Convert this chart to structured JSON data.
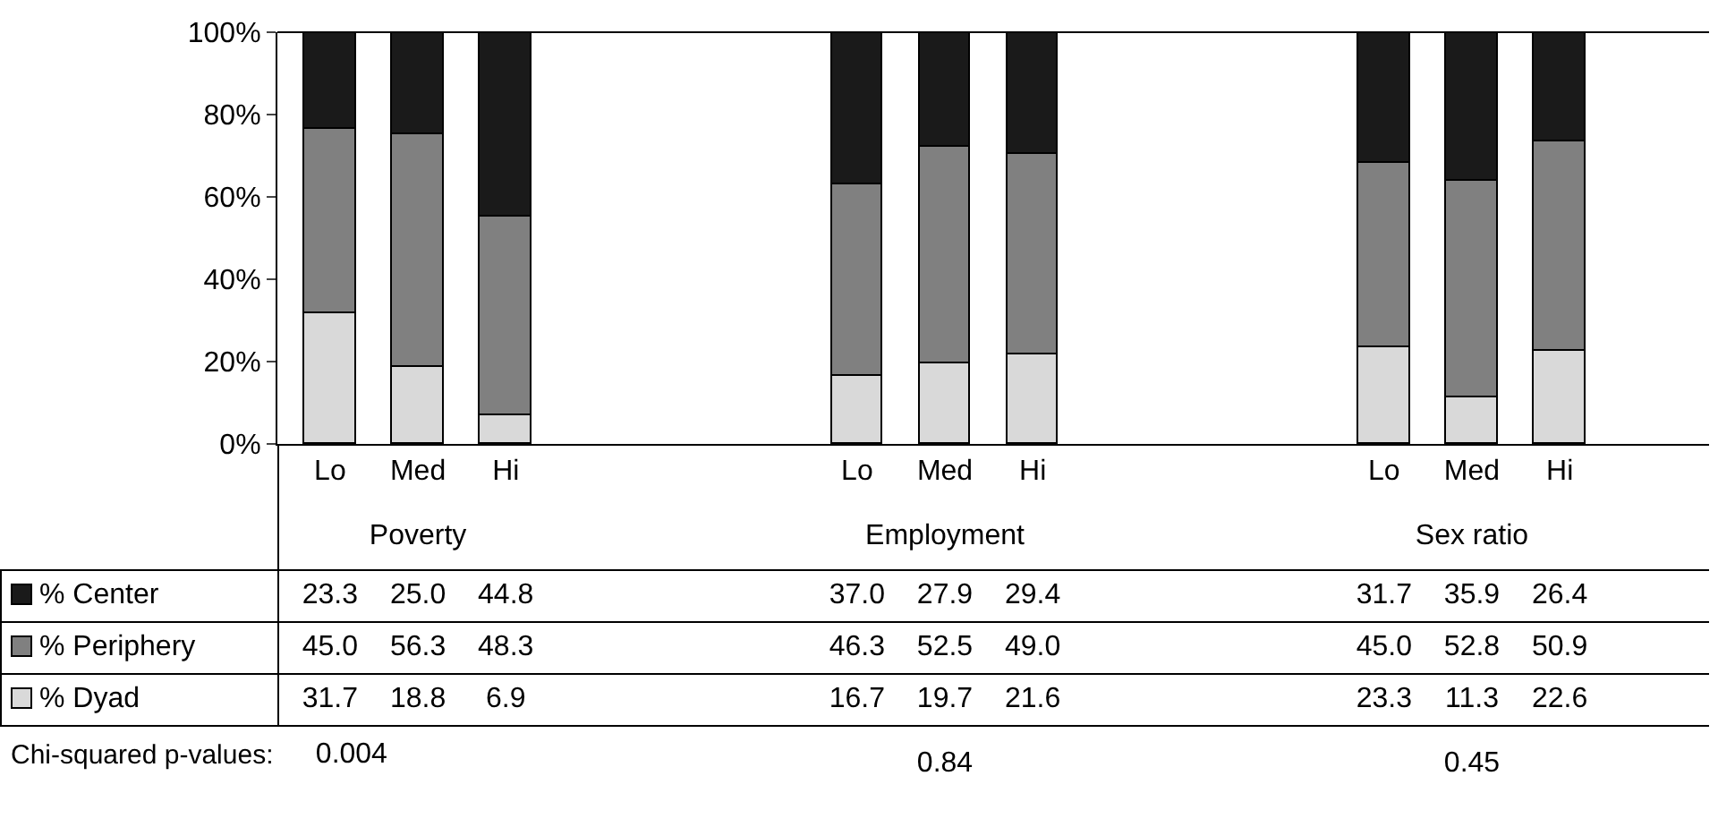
{
  "chart_data": {
    "type": "bar",
    "stacked": true,
    "legend": "left",
    "categories": [
      "Lo",
      "Med",
      "Hi",
      null,
      null,
      null,
      "Lo",
      "Med",
      "Hi",
      null,
      null,
      null,
      "Lo",
      "Med",
      "Hi"
    ],
    "series": [
      {
        "name": "% Dyad",
        "color": "#d9d9d9",
        "values": [
          31.7,
          18.8,
          6.9,
          null,
          null,
          null,
          16.7,
          19.7,
          21.6,
          null,
          null,
          null,
          23.3,
          11.3,
          22.6
        ],
        "value_labels": [
          "31.7",
          "18.8",
          "6.9",
          null,
          null,
          null,
          "16.7",
          "19.7",
          "21.6",
          null,
          null,
          null,
          "23.3",
          "11.3",
          "22.6"
        ]
      },
      {
        "name": "% Periphery",
        "color": "#808080",
        "values": [
          45.0,
          56.3,
          48.3,
          null,
          null,
          null,
          46.3,
          52.5,
          49.0,
          null,
          null,
          null,
          45.0,
          52.8,
          50.9
        ],
        "value_labels": [
          "45.0",
          "56.3",
          "48.3",
          null,
          null,
          null,
          "46.3",
          "52.5",
          "49.0",
          null,
          null,
          null,
          "45.0",
          "52.8",
          "50.9"
        ]
      },
      {
        "name": "% Center",
        "color": "#1a1a1a",
        "values": [
          23.3,
          25.0,
          44.8,
          null,
          null,
          null,
          37.0,
          27.9,
          29.4,
          null,
          null,
          null,
          31.7,
          35.9,
          26.4
        ],
        "value_labels": [
          "23.3",
          "25.0",
          "44.8",
          null,
          null,
          null,
          "37.0",
          "27.9",
          "29.4",
          null,
          null,
          null,
          "31.7",
          "35.9",
          "26.4"
        ]
      }
    ],
    "ylim": [
      0,
      100
    ],
    "yticks": [
      {
        "value": 0,
        "label": "0%"
      },
      {
        "value": 20,
        "label": "20%"
      },
      {
        "value": 40,
        "label": "40%"
      },
      {
        "value": 60,
        "label": "60%"
      },
      {
        "value": 80,
        "label": "80%"
      },
      {
        "value": 100,
        "label": "100%"
      }
    ],
    "grid": false,
    "annotations": [
      "Poverty",
      "Employment",
      "Sex ratio",
      "Chi-squared p-values:",
      "0.004",
      "0.84",
      "0.45"
    ]
  }
}
